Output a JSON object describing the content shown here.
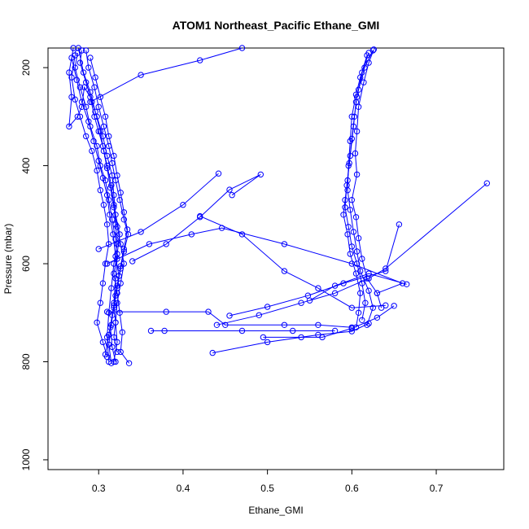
{
  "chart_data": {
    "type": "line",
    "title": "ATOM1 Northeast_Pacific Ethane_GMI",
    "xlabel": "Ethane_GMI",
    "ylabel": "Pressure (mbar)",
    "xlim": [
      0.24,
      0.78
    ],
    "ylim": [
      1020,
      160
    ],
    "y_reversed": true,
    "x_ticks": [
      0.3,
      0.4,
      0.5,
      0.6,
      0.7
    ],
    "y_ticks": [
      200,
      400,
      600,
      800,
      1000
    ],
    "grid": false,
    "color": "#0000ff",
    "series": [
      {
        "points": [
          [
            0.27,
            160
          ],
          [
            0.265,
            210
          ],
          [
            0.268,
            260
          ],
          [
            0.265,
            320
          ],
          [
            0.275,
            300
          ],
          [
            0.28,
            280
          ],
          [
            0.283,
            240
          ],
          [
            0.29,
            260
          ],
          [
            0.295,
            300
          ],
          [
            0.3,
            330
          ],
          [
            0.305,
            360
          ],
          [
            0.31,
            400
          ],
          [
            0.315,
            440
          ],
          [
            0.318,
            480
          ],
          [
            0.32,
            520
          ],
          [
            0.322,
            560
          ],
          [
            0.318,
            600
          ],
          [
            0.315,
            650
          ],
          [
            0.312,
            700
          ],
          [
            0.31,
            750
          ],
          [
            0.312,
            800
          ]
        ]
      },
      {
        "points": [
          [
            0.275,
            170
          ],
          [
            0.272,
            200
          ],
          [
            0.278,
            240
          ],
          [
            0.285,
            280
          ],
          [
            0.29,
            320
          ],
          [
            0.298,
            360
          ],
          [
            0.302,
            400
          ],
          [
            0.308,
            430
          ],
          [
            0.312,
            470
          ],
          [
            0.316,
            510
          ],
          [
            0.32,
            550
          ],
          [
            0.322,
            590
          ],
          [
            0.32,
            630
          ],
          [
            0.318,
            680
          ],
          [
            0.32,
            720
          ],
          [
            0.322,
            760
          ],
          [
            0.318,
            800
          ]
        ]
      },
      {
        "points": [
          [
            0.28,
            165
          ],
          [
            0.278,
            190
          ],
          [
            0.285,
            230
          ],
          [
            0.292,
            270
          ],
          [
            0.298,
            300
          ],
          [
            0.305,
            340
          ],
          [
            0.31,
            380
          ],
          [
            0.316,
            420
          ],
          [
            0.318,
            460
          ],
          [
            0.32,
            500
          ],
          [
            0.325,
            540
          ],
          [
            0.322,
            580
          ],
          [
            0.318,
            620
          ],
          [
            0.322,
            660
          ],
          [
            0.325,
            700
          ],
          [
            0.328,
            740
          ],
          [
            0.326,
            780
          ],
          [
            0.336,
            803
          ]
        ]
      },
      {
        "points": [
          [
            0.272,
            175
          ],
          [
            0.268,
            220
          ],
          [
            0.272,
            265
          ],
          [
            0.278,
            300
          ],
          [
            0.285,
            340
          ],
          [
            0.292,
            370
          ],
          [
            0.298,
            410
          ],
          [
            0.302,
            450
          ],
          [
            0.306,
            480
          ],
          [
            0.31,
            520
          ],
          [
            0.312,
            560
          ],
          [
            0.308,
            600
          ],
          [
            0.305,
            640
          ],
          [
            0.302,
            680
          ],
          [
            0.298,
            720
          ],
          [
            0.305,
            760
          ],
          [
            0.31,
            790
          ]
        ]
      },
      {
        "points": [
          [
            0.285,
            165
          ],
          [
            0.288,
            200
          ],
          [
            0.295,
            240
          ],
          [
            0.3,
            280
          ],
          [
            0.306,
            320
          ],
          [
            0.312,
            360
          ],
          [
            0.316,
            395
          ],
          [
            0.32,
            430
          ],
          [
            0.325,
            470
          ],
          [
            0.33,
            510
          ],
          [
            0.335,
            540
          ],
          [
            0.33,
            575
          ],
          [
            0.326,
            610
          ],
          [
            0.322,
            650
          ],
          [
            0.318,
            690
          ],
          [
            0.314,
            730
          ],
          [
            0.316,
            770
          ],
          [
            0.32,
            800
          ]
        ]
      },
      {
        "points": [
          [
            0.276,
            160
          ],
          [
            0.282,
            210
          ],
          [
            0.29,
            250
          ],
          [
            0.296,
            290
          ],
          [
            0.302,
            330
          ],
          [
            0.306,
            370
          ],
          [
            0.31,
            405
          ],
          [
            0.314,
            445
          ],
          [
            0.318,
            485
          ],
          [
            0.322,
            525
          ],
          [
            0.326,
            560
          ],
          [
            0.33,
            600
          ],
          [
            0.326,
            640
          ],
          [
            0.322,
            680
          ],
          [
            0.32,
            720
          ],
          [
            0.318,
            750
          ],
          [
            0.322,
            780
          ]
        ]
      },
      {
        "points": [
          [
            0.268,
            180
          ],
          [
            0.274,
            225
          ],
          [
            0.28,
            270
          ],
          [
            0.288,
            310
          ],
          [
            0.294,
            350
          ],
          [
            0.3,
            390
          ],
          [
            0.305,
            425
          ],
          [
            0.31,
            460
          ],
          [
            0.313,
            500
          ],
          [
            0.317,
            540
          ],
          [
            0.32,
            585
          ],
          [
            0.324,
            625
          ],
          [
            0.32,
            665
          ],
          [
            0.316,
            705
          ],
          [
            0.312,
            745
          ],
          [
            0.308,
            785
          ]
        ]
      },
      {
        "points": [
          [
            0.29,
            180
          ],
          [
            0.296,
            220
          ],
          [
            0.302,
            260
          ],
          [
            0.308,
            300
          ],
          [
            0.312,
            340
          ],
          [
            0.318,
            380
          ],
          [
            0.322,
            420
          ],
          [
            0.326,
            455
          ],
          [
            0.33,
            495
          ],
          [
            0.334,
            530
          ],
          [
            0.33,
            570
          ],
          [
            0.326,
            605
          ],
          [
            0.322,
            645
          ],
          [
            0.318,
            685
          ],
          [
            0.315,
            725
          ],
          [
            0.312,
            765
          ],
          [
            0.315,
            803
          ]
        ]
      },
      {
        "points": [
          [
            0.29,
            270
          ],
          [
            0.35,
            215
          ],
          [
            0.42,
            185
          ],
          [
            0.47,
            160
          ]
        ]
      },
      {
        "points": [
          [
            0.3,
            570
          ],
          [
            0.35,
            535
          ],
          [
            0.4,
            480
          ],
          [
            0.442,
            416
          ]
        ]
      },
      {
        "points": [
          [
            0.34,
            595
          ],
          [
            0.38,
            560
          ],
          [
            0.42,
            505
          ],
          [
            0.455,
            449
          ],
          [
            0.492,
            418
          ],
          [
            0.458,
            460
          ]
        ]
      },
      {
        "points": [
          [
            0.31,
            600
          ],
          [
            0.36,
            560
          ],
          [
            0.41,
            540
          ],
          [
            0.446,
            527
          ],
          [
            0.52,
            560
          ],
          [
            0.6,
            600
          ],
          [
            0.66,
            640
          ],
          [
            0.63,
            660
          ]
        ]
      },
      {
        "points": [
          [
            0.42,
            503
          ],
          [
            0.47,
            540
          ],
          [
            0.52,
            615
          ],
          [
            0.56,
            650
          ],
          [
            0.6,
            690
          ],
          [
            0.64,
            685
          ]
        ]
      },
      {
        "points": [
          [
            0.31,
            698
          ],
          [
            0.38,
            698
          ],
          [
            0.43,
            698
          ],
          [
            0.45,
            725
          ],
          [
            0.52,
            725
          ],
          [
            0.56,
            725
          ],
          [
            0.6,
            730
          ]
        ]
      },
      {
        "points": [
          [
            0.362,
            737
          ],
          [
            0.378,
            737
          ],
          [
            0.47,
            737
          ],
          [
            0.53,
            737
          ],
          [
            0.58,
            737
          ]
        ]
      },
      {
        "points": [
          [
            0.435,
            782
          ],
          [
            0.5,
            760
          ],
          [
            0.56,
            745
          ],
          [
            0.6,
            738
          ],
          [
            0.62,
            722
          ]
        ]
      },
      {
        "points": [
          [
            0.44,
            725
          ],
          [
            0.49,
            705
          ],
          [
            0.54,
            680
          ],
          [
            0.58,
            660
          ],
          [
            0.62,
            630
          ],
          [
            0.64,
            610
          ],
          [
            0.76,
            436
          ]
        ]
      },
      {
        "points": [
          [
            0.455,
            706
          ],
          [
            0.5,
            688
          ],
          [
            0.548,
            665
          ],
          [
            0.59,
            640
          ],
          [
            0.64,
            615
          ],
          [
            0.656,
            520
          ]
        ]
      },
      {
        "points": [
          [
            0.495,
            750
          ],
          [
            0.54,
            750
          ],
          [
            0.565,
            750
          ],
          [
            0.6,
            732
          ],
          [
            0.63,
            710
          ],
          [
            0.65,
            686
          ]
        ]
      },
      {
        "points": [
          [
            0.55,
            675
          ],
          [
            0.58,
            645
          ],
          [
            0.62,
            620
          ],
          [
            0.665,
            642
          ]
        ]
      },
      {
        "points": [
          [
            0.625,
            165
          ],
          [
            0.615,
            200
          ],
          [
            0.608,
            245
          ],
          [
            0.605,
            270
          ],
          [
            0.602,
            320
          ],
          [
            0.598,
            380
          ],
          [
            0.595,
            430
          ],
          [
            0.592,
            470
          ],
          [
            0.59,
            500
          ],
          [
            0.595,
            540
          ],
          [
            0.598,
            580
          ],
          [
            0.605,
            620
          ],
          [
            0.61,
            660
          ],
          [
            0.608,
            700
          ],
          [
            0.605,
            730
          ]
        ]
      },
      {
        "points": [
          [
            0.62,
            170
          ],
          [
            0.612,
            210
          ],
          [
            0.606,
            260
          ],
          [
            0.603,
            300
          ],
          [
            0.6,
            345
          ],
          [
            0.597,
            395
          ],
          [
            0.594,
            440
          ],
          [
            0.592,
            485
          ],
          [
            0.596,
            525
          ],
          [
            0.6,
            565
          ],
          [
            0.606,
            600
          ],
          [
            0.612,
            640
          ],
          [
            0.616,
            680
          ],
          [
            0.612,
            715
          ]
        ]
      },
      {
        "points": [
          [
            0.618,
            175
          ],
          [
            0.61,
            220
          ],
          [
            0.605,
            255
          ],
          [
            0.6,
            300
          ],
          [
            0.598,
            350
          ],
          [
            0.596,
            400
          ],
          [
            0.595,
            450
          ],
          [
            0.598,
            490
          ],
          [
            0.602,
            535
          ],
          [
            0.606,
            575
          ],
          [
            0.61,
            615
          ],
          [
            0.62,
            655
          ],
          [
            0.625,
            690
          ],
          [
            0.618,
            725
          ]
        ]
      },
      {
        "points": [
          [
            0.626,
            163
          ],
          [
            0.62,
            190
          ],
          [
            0.614,
            230
          ],
          [
            0.608,
            280
          ],
          [
            0.606,
            330
          ],
          [
            0.604,
            375
          ],
          [
            0.606,
            418
          ],
          [
            0.6,
            470
          ],
          [
            0.605,
            505
          ],
          [
            0.608,
            548
          ],
          [
            0.612,
            590
          ],
          [
            0.618,
            630
          ],
          [
            0.63,
            660
          ],
          [
            0.635,
            690
          ]
        ]
      }
    ]
  }
}
